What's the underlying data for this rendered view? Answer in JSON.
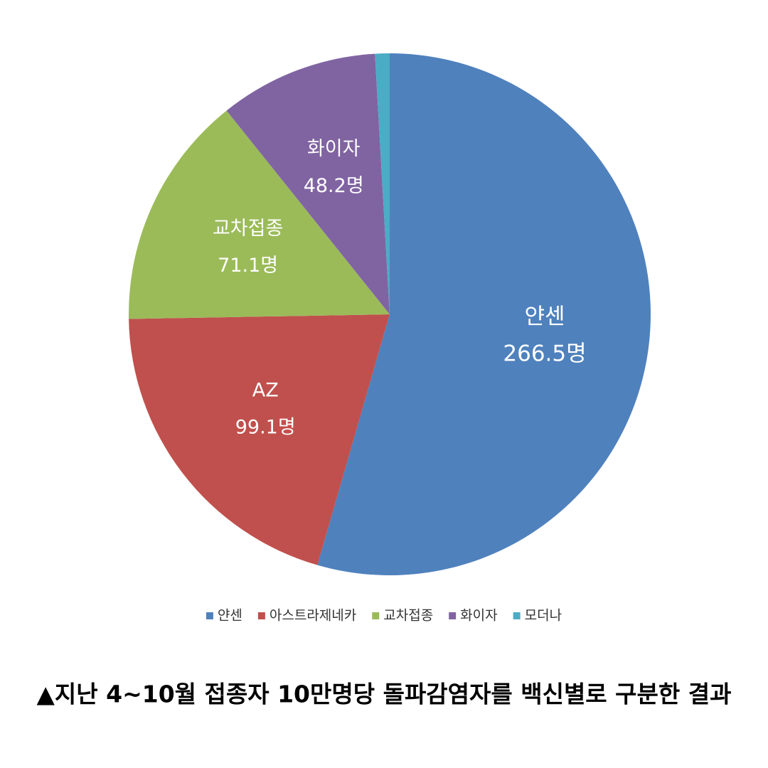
{
  "chart_data": {
    "type": "pie",
    "categories": [
      "얀센",
      "아스트라제네카",
      "교차접종",
      "화이자",
      "모더나"
    ],
    "values": [
      266.5,
      99.1,
      71.1,
      48.2,
      4.4
    ],
    "colors": [
      "#4f81bd",
      "#c0504d",
      "#9bbb59",
      "#8064a2",
      "#4bacc6"
    ],
    "slice_labels": [
      "얀센",
      "AZ",
      "교차접종",
      "화이자",
      null
    ],
    "value_labels": [
      "266.5명",
      "99.1명",
      "71.1명",
      "48.2명",
      null
    ],
    "legend": "bottom",
    "caption": "▲지난 4~10월 접종자 10만명당 돌파감염자를 백신별로 구분한 결과"
  }
}
